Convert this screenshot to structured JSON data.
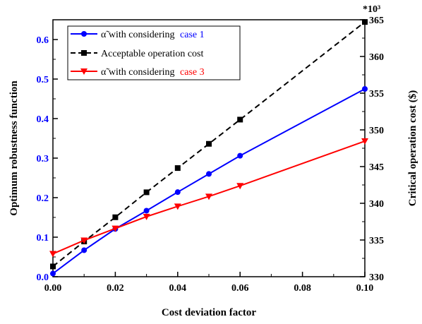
{
  "chart_data": {
    "type": "line",
    "xlabel": "Cost deviation factor",
    "ylabel_left": "Optimum robustness function",
    "ylabel_right": "Critical operation cost ($)",
    "right_axis_multiplier": "*10³",
    "xlim": [
      0,
      0.1
    ],
    "ylim_left": [
      0,
      0.65
    ],
    "ylim_right": [
      330,
      365
    ],
    "x_ticks": [
      "0.00",
      "0.02",
      "0.04",
      "0.06",
      "0.08",
      "0.10"
    ],
    "y_left_ticks": [
      "0.0",
      "0.1",
      "0.2",
      "0.3",
      "0.4",
      "0.5",
      "0.6"
    ],
    "y_right_ticks": [
      "330",
      "335",
      "340",
      "345",
      "350",
      "355",
      "360",
      "365"
    ],
    "grid": false,
    "legend_position": "top-left",
    "series": [
      {
        "axis": "left",
        "color": "#0000ff",
        "marker": "circle",
        "dash": "solid",
        "legend_prefix": "α̃ with considering",
        "legend_case": "case 1",
        "x": [
          0,
          0.01,
          0.02,
          0.03,
          0.04,
          0.05,
          0.06,
          0.1
        ],
        "values": [
          0.008,
          0.067,
          0.121,
          0.167,
          0.214,
          0.26,
          0.306,
          0.475
        ]
      },
      {
        "axis": "right",
        "color": "#000000",
        "marker": "square",
        "dash": "dashed",
        "legend_prefix": "Acceptable operation cost",
        "legend_case": "",
        "x": [
          0,
          0.01,
          0.02,
          0.03,
          0.04,
          0.05,
          0.06,
          0.1
        ],
        "values": [
          331.4,
          334.8,
          338.1,
          341.5,
          344.8,
          348.1,
          351.4,
          364.7
        ]
      },
      {
        "axis": "left",
        "color": "#ff0000",
        "marker": "triangle-down",
        "dash": "solid",
        "legend_prefix": "α̃ with considering",
        "legend_case": "case 3",
        "x": [
          0,
          0.01,
          0.02,
          0.03,
          0.04,
          0.05,
          0.06,
          0.1
        ],
        "values": [
          0.058,
          0.092,
          0.122,
          0.152,
          0.178,
          0.203,
          0.23,
          0.343
        ]
      }
    ]
  }
}
